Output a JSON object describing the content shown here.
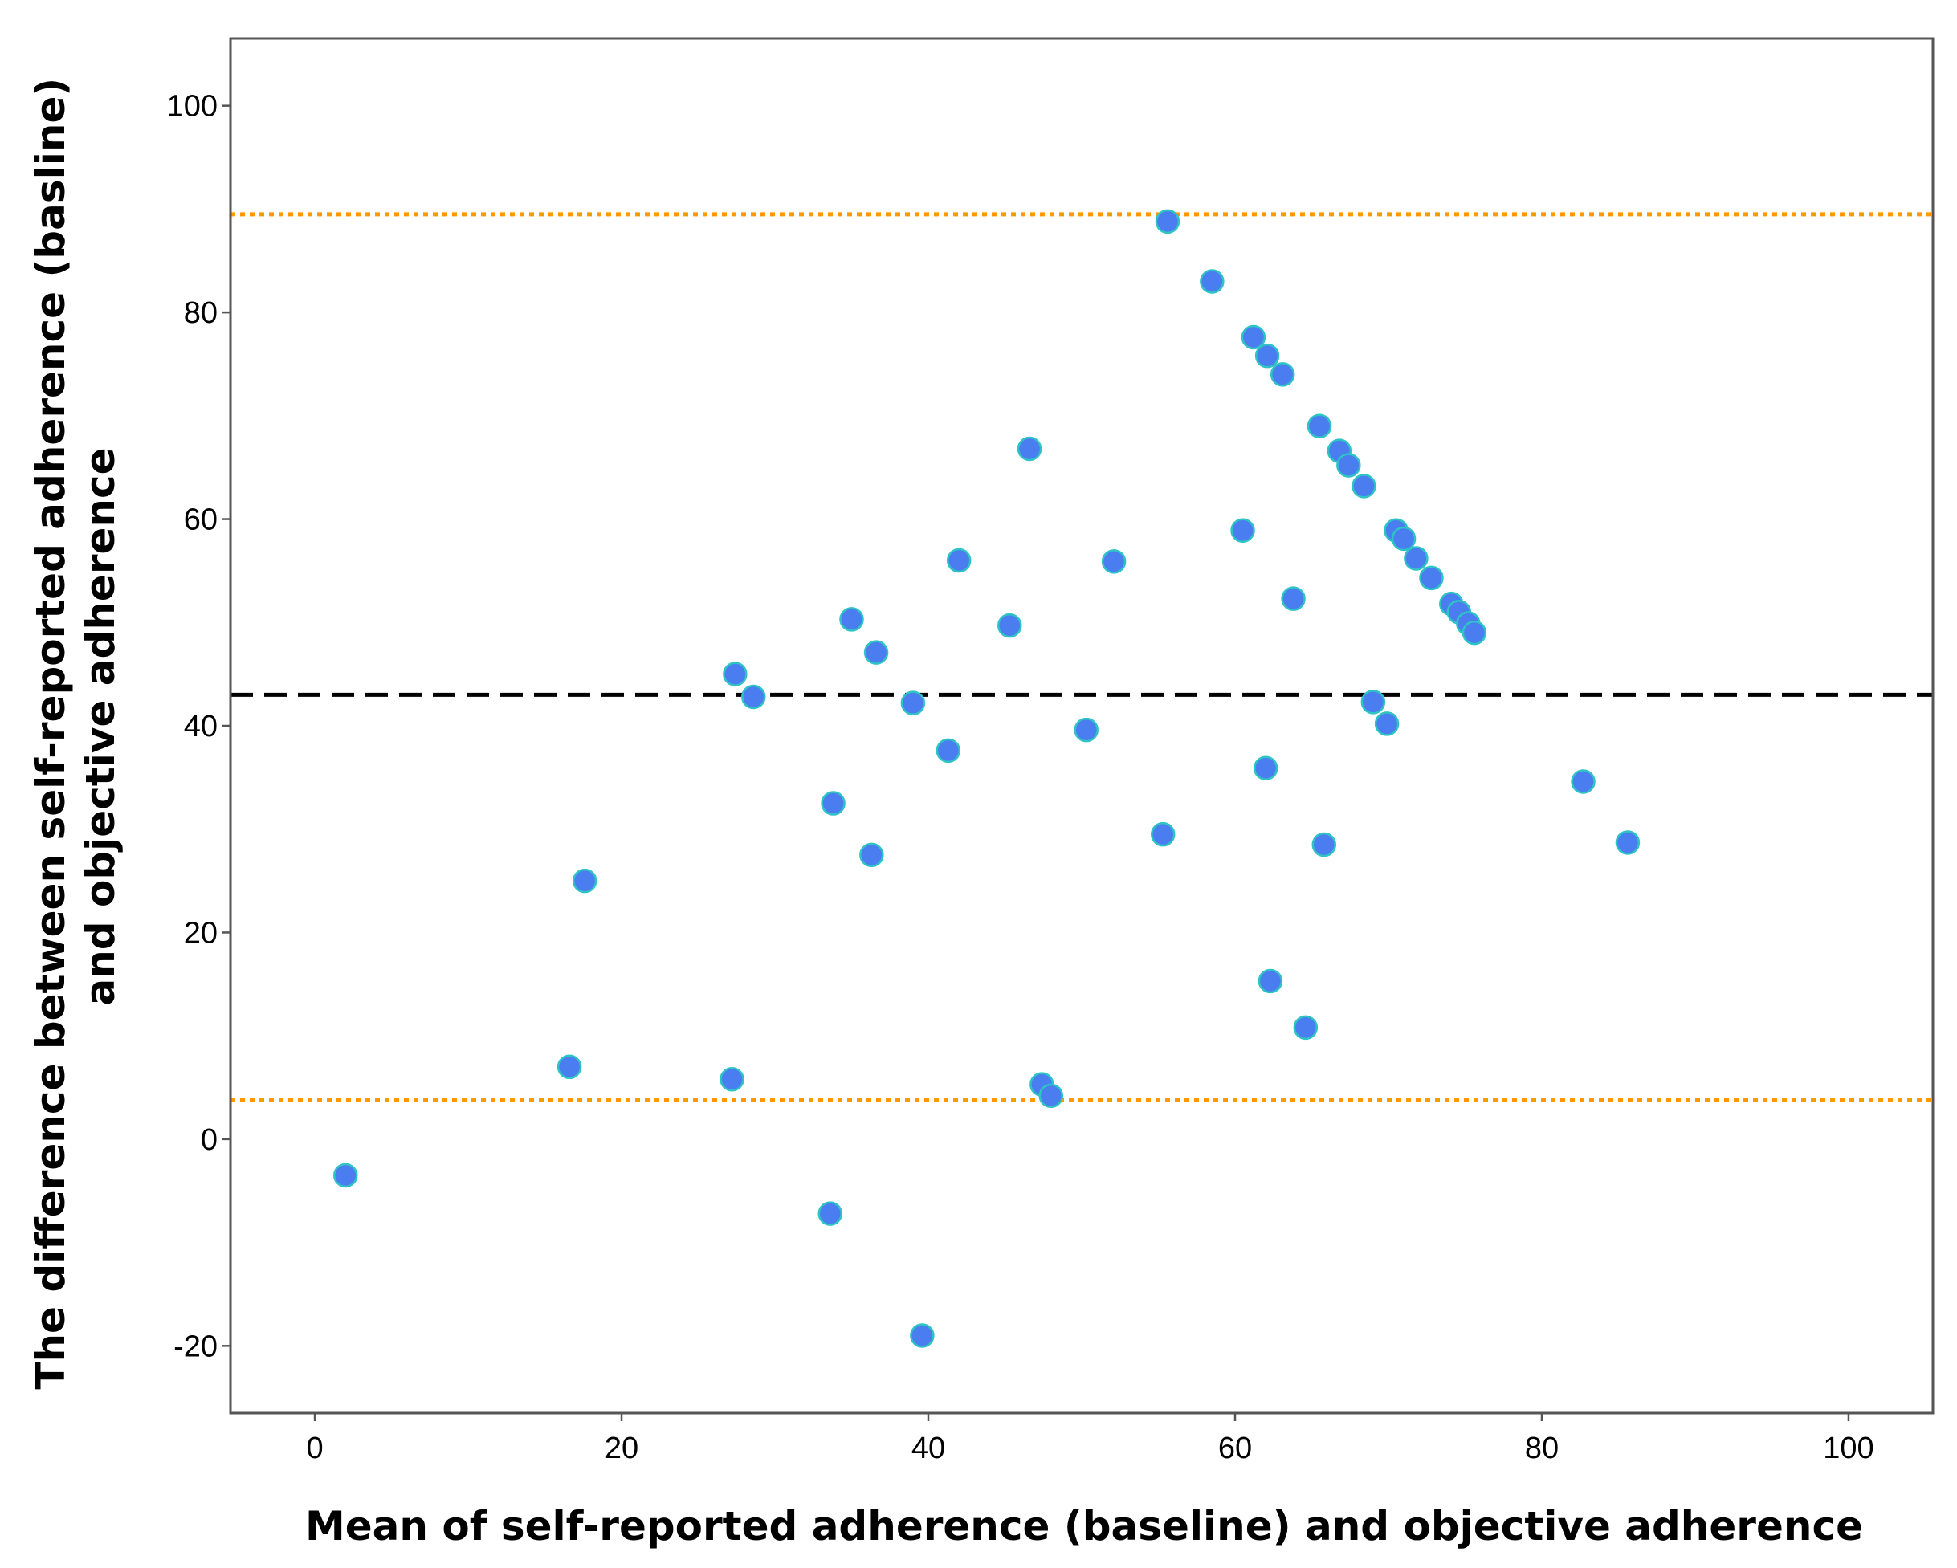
{
  "chart_data": {
    "type": "scatter",
    "xlabel": "Mean of self-reported adherence (baseline) and objective adherence",
    "ylabel_lines": [
      "The difference between self-reported adherence (basline)",
      "and objective adherence"
    ],
    "xlim": [
      -5.5,
      105.5
    ],
    "ylim": [
      -26.5,
      106.5
    ],
    "x_ticks": [
      0,
      20,
      40,
      60,
      80,
      100
    ],
    "y_ticks": [
      -20,
      0,
      20,
      40,
      60,
      80,
      100
    ],
    "grid": false,
    "colors": {
      "points": "#4a7ef0",
      "points_outline": "#2ec4c4",
      "mean_line": "#000000",
      "limit_lines": "#ff9900",
      "frame": "#555555"
    },
    "reference_lines": {
      "mean": 43.0,
      "upper_limit": 89.5,
      "lower_limit": 3.8
    },
    "points": [
      {
        "x": 2.0,
        "y": -3.5
      },
      {
        "x": 16.6,
        "y": 7.0
      },
      {
        "x": 17.6,
        "y": 25.0
      },
      {
        "x": 27.2,
        "y": 5.8
      },
      {
        "x": 27.4,
        "y": 45.0
      },
      {
        "x": 28.6,
        "y": 42.8
      },
      {
        "x": 33.6,
        "y": -7.2
      },
      {
        "x": 33.8,
        "y": 32.5
      },
      {
        "x": 35.0,
        "y": 50.3
      },
      {
        "x": 36.3,
        "y": 27.5
      },
      {
        "x": 36.6,
        "y": 47.1
      },
      {
        "x": 39.0,
        "y": 42.2
      },
      {
        "x": 39.6,
        "y": -19.0
      },
      {
        "x": 41.3,
        "y": 37.6
      },
      {
        "x": 42.0,
        "y": 56.0
      },
      {
        "x": 45.3,
        "y": 49.7
      },
      {
        "x": 46.6,
        "y": 66.8
      },
      {
        "x": 47.4,
        "y": 5.3
      },
      {
        "x": 48.0,
        "y": 4.2
      },
      {
        "x": 50.3,
        "y": 39.6
      },
      {
        "x": 52.1,
        "y": 55.9
      },
      {
        "x": 55.3,
        "y": 29.5
      },
      {
        "x": 55.6,
        "y": 88.8
      },
      {
        "x": 58.5,
        "y": 83.0
      },
      {
        "x": 60.5,
        "y": 58.9
      },
      {
        "x": 61.2,
        "y": 77.6
      },
      {
        "x": 62.0,
        "y": 35.9
      },
      {
        "x": 62.1,
        "y": 75.8
      },
      {
        "x": 62.3,
        "y": 15.3
      },
      {
        "x": 63.1,
        "y": 74.0
      },
      {
        "x": 63.8,
        "y": 52.3
      },
      {
        "x": 64.6,
        "y": 10.8
      },
      {
        "x": 65.5,
        "y": 69.0
      },
      {
        "x": 65.8,
        "y": 28.5
      },
      {
        "x": 66.8,
        "y": 66.6
      },
      {
        "x": 67.4,
        "y": 65.2
      },
      {
        "x": 68.4,
        "y": 63.2
      },
      {
        "x": 69.0,
        "y": 42.3
      },
      {
        "x": 69.9,
        "y": 40.2
      },
      {
        "x": 70.5,
        "y": 58.9
      },
      {
        "x": 71.0,
        "y": 58.1
      },
      {
        "x": 71.8,
        "y": 56.2
      },
      {
        "x": 72.8,
        "y": 54.3
      },
      {
        "x": 74.1,
        "y": 51.8
      },
      {
        "x": 74.6,
        "y": 51.0
      },
      {
        "x": 75.2,
        "y": 49.9
      },
      {
        "x": 75.6,
        "y": 49.0
      },
      {
        "x": 82.7,
        "y": 34.6
      },
      {
        "x": 85.6,
        "y": 28.7
      }
    ]
  }
}
